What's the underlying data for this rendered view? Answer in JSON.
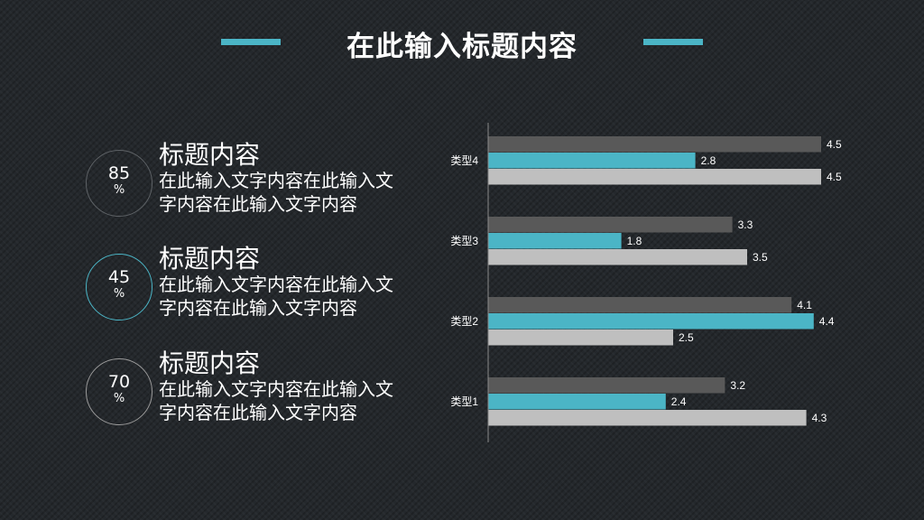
{
  "header": {
    "title": "在此输入标题内容",
    "accent_color": "#4bb5c6"
  },
  "items": [
    {
      "value": "85",
      "unit": "%",
      "heading": "标题内容",
      "text": "在此输入文字内容在此输入文字内容在此输入文字内容",
      "ring_color": "#5e6266"
    },
    {
      "value": "45",
      "unit": "%",
      "heading": "标题内容",
      "text": "在此输入文字内容在此输入文字内容在此输入文字内容",
      "ring_color": "#4bb5c6"
    },
    {
      "value": "70",
      "unit": "%",
      "heading": "标题内容",
      "text": "在此输入文字内容在此输入文字内容在此输入文字内容",
      "ring_color": "#9a9a9a"
    }
  ],
  "chart_data": {
    "type": "bar",
    "orientation": "horizontal",
    "categories": [
      "类型1",
      "类型2",
      "类型3",
      "类型4"
    ],
    "series": [
      {
        "values": [
          3.2,
          4.1,
          3.3,
          4.5
        ],
        "color": "#595959"
      },
      {
        "values": [
          2.4,
          4.4,
          1.8,
          2.8
        ],
        "color": "#4bb5c6"
      },
      {
        "values": [
          4.3,
          2.5,
          3.5,
          4.5
        ],
        "color": "#bfbfbf"
      }
    ],
    "xlim": [
      0,
      5
    ],
    "data_labels": true,
    "grid": false,
    "legend": "none"
  }
}
